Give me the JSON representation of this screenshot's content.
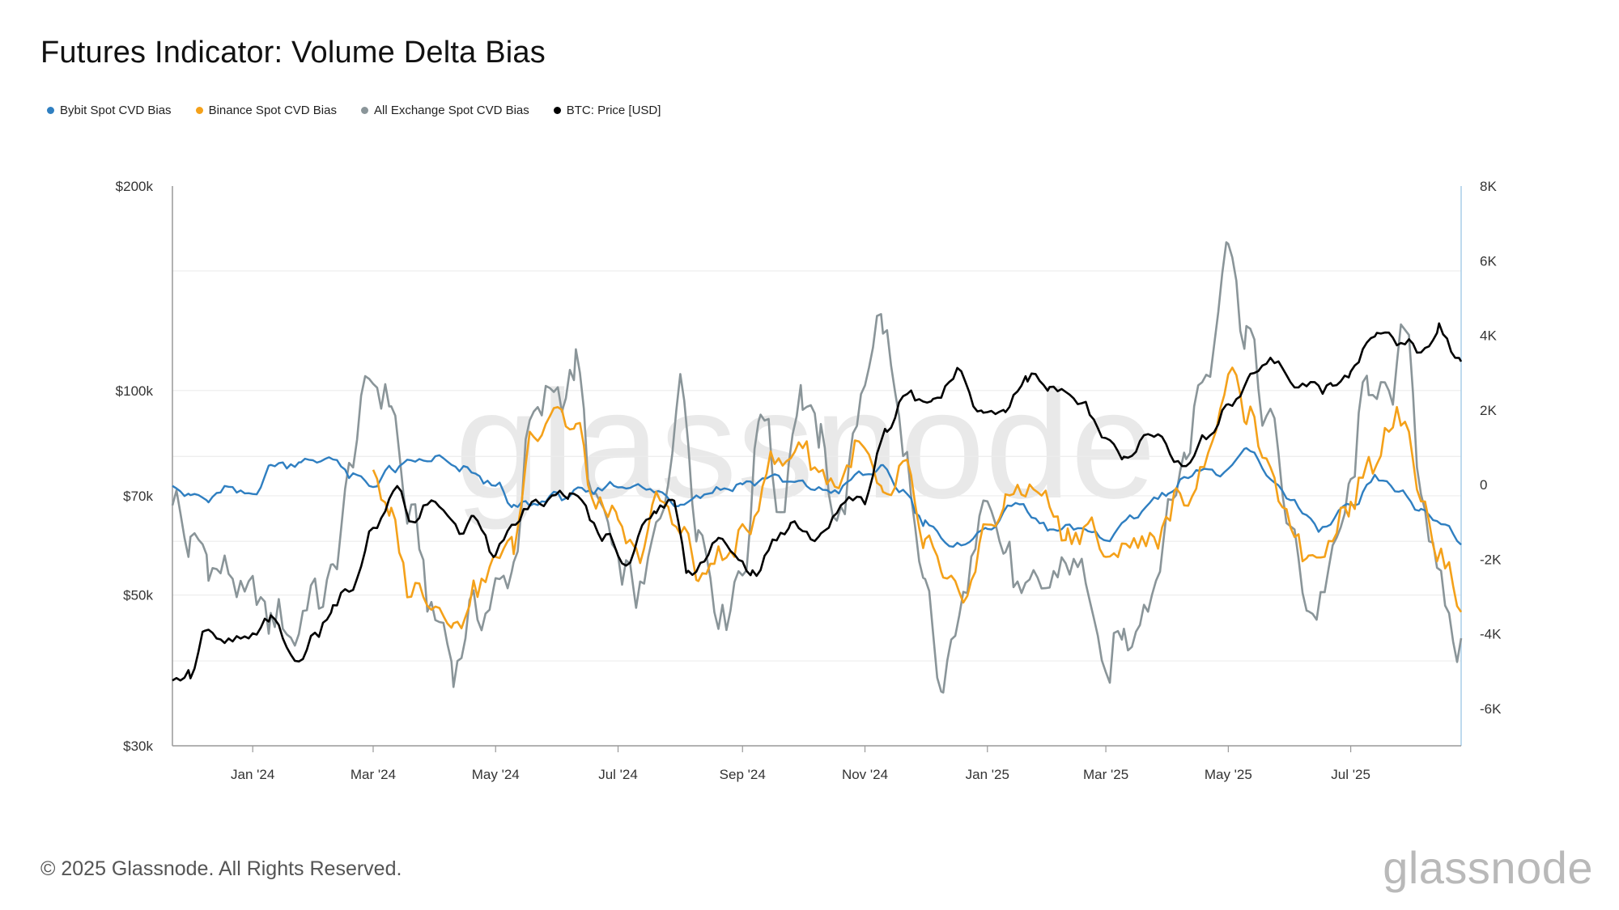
{
  "title": "Futures Indicator: Volume Delta Bias",
  "footer": "© 2025 Glassnode. All Rights Reserved.",
  "brand": "glassnode",
  "watermark": "glassnode",
  "colors": {
    "bybit": "#2f7fc1",
    "binance": "#f4a11a",
    "all_exchange": "#8a9599",
    "btc_price": "#000000",
    "grid": "#ececec",
    "axis": "#999999",
    "right_axis": "#a9cde8"
  },
  "chart_data": {
    "type": "line",
    "title": "Futures Indicator: Volume Delta Bias",
    "x_range": [
      "2023-11-22",
      "2025-08-25"
    ],
    "xtick_labels": [
      {
        "date": "2024-01-01",
        "label": "Jan '24"
      },
      {
        "date": "2024-03-01",
        "label": "Mar '24"
      },
      {
        "date": "2024-05-01",
        "label": "May '24"
      },
      {
        "date": "2024-07-01",
        "label": "Jul '24"
      },
      {
        "date": "2024-09-01",
        "label": "Sep '24"
      },
      {
        "date": "2024-11-01",
        "label": "Nov '24"
      },
      {
        "date": "2025-01-01",
        "label": "Jan '25"
      },
      {
        "date": "2025-03-01",
        "label": "Mar '25"
      },
      {
        "date": "2025-05-01",
        "label": "May '25"
      },
      {
        "date": "2025-07-01",
        "label": "Jul '25"
      }
    ],
    "left_axis": {
      "scale": "log",
      "range": [
        30000,
        200000
      ],
      "ticks": [
        {
          "value": 30000,
          "label": "$30k"
        },
        {
          "value": 50000,
          "label": "$50k"
        },
        {
          "value": 70000,
          "label": "$70k"
        },
        {
          "value": 100000,
          "label": "$100k"
        },
        {
          "value": 200000,
          "label": "$200k"
        }
      ],
      "grid_values": [
        40000,
        60000,
        80000,
        150000
      ]
    },
    "right_axis": {
      "scale": "linear",
      "range": [
        -7000,
        8000
      ],
      "ticks": [
        {
          "value": 8000,
          "label": "8K"
        },
        {
          "value": 6000,
          "label": "6K"
        },
        {
          "value": 4000,
          "label": "4K"
        },
        {
          "value": 2000,
          "label": "2K"
        },
        {
          "value": 0,
          "label": "0"
        },
        {
          "value": -2000,
          "label": "-2K"
        },
        {
          "value": -4000,
          "label": "-4K"
        },
        {
          "value": -6000,
          "label": "-6K"
        }
      ]
    },
    "series": [
      {
        "name": "Bybit Spot CVD Bias",
        "key": "bybit",
        "axis": "right",
        "points": [
          [
            "2023-11-22",
            0
          ],
          [
            "2023-12-01",
            -300
          ],
          [
            "2023-12-10",
            -400
          ],
          [
            "2023-12-20",
            -100
          ],
          [
            "2024-01-01",
            -300
          ],
          [
            "2024-01-10",
            500
          ],
          [
            "2024-01-25",
            600
          ],
          [
            "2024-02-10",
            700
          ],
          [
            "2024-02-20",
            200
          ],
          [
            "2024-03-01",
            0
          ],
          [
            "2024-03-10",
            400
          ],
          [
            "2024-03-20",
            600
          ],
          [
            "2024-04-01",
            700
          ],
          [
            "2024-04-15",
            400
          ],
          [
            "2024-05-01",
            0
          ],
          [
            "2024-05-10",
            -600
          ],
          [
            "2024-05-20",
            -500
          ],
          [
            "2024-06-01",
            -300
          ],
          [
            "2024-06-15",
            -200
          ],
          [
            "2024-07-01",
            0
          ],
          [
            "2024-07-15",
            -100
          ],
          [
            "2024-08-01",
            -500
          ],
          [
            "2024-08-15",
            -200
          ],
          [
            "2024-09-01",
            0
          ],
          [
            "2024-09-15",
            200
          ],
          [
            "2024-10-01",
            0
          ],
          [
            "2024-10-15",
            -200
          ],
          [
            "2024-11-01",
            300
          ],
          [
            "2024-11-10",
            400
          ],
          [
            "2024-11-20",
            -200
          ],
          [
            "2024-12-01",
            -1000
          ],
          [
            "2024-12-15",
            -1700
          ],
          [
            "2025-01-01",
            -1200
          ],
          [
            "2025-01-15",
            -500
          ],
          [
            "2025-02-01",
            -1200
          ],
          [
            "2025-02-20",
            -1200
          ],
          [
            "2025-03-01",
            -1500
          ],
          [
            "2025-03-15",
            -800
          ],
          [
            "2025-04-01",
            -200
          ],
          [
            "2025-04-15",
            400
          ],
          [
            "2025-05-01",
            300
          ],
          [
            "2025-05-10",
            1000
          ],
          [
            "2025-05-20",
            300
          ],
          [
            "2025-06-01",
            -400
          ],
          [
            "2025-06-15",
            -1200
          ],
          [
            "2025-07-01",
            -600
          ],
          [
            "2025-07-15",
            200
          ],
          [
            "2025-07-25",
            -200
          ],
          [
            "2025-08-05",
            -700
          ],
          [
            "2025-08-15",
            -1000
          ],
          [
            "2025-08-25",
            -1500
          ]
        ]
      },
      {
        "name": "Binance Spot CVD Bias",
        "key": "binance",
        "axis": "right",
        "points": [
          [
            "2024-03-01",
            500
          ],
          [
            "2024-03-10",
            -1000
          ],
          [
            "2024-03-20",
            -2800
          ],
          [
            "2024-04-01",
            -3100
          ],
          [
            "2024-04-10",
            -3800
          ],
          [
            "2024-04-20",
            -3000
          ],
          [
            "2024-05-01",
            -2000
          ],
          [
            "2024-05-10",
            -1500
          ],
          [
            "2024-05-20",
            1500
          ],
          [
            "2024-06-01",
            2000
          ],
          [
            "2024-06-10",
            1500
          ],
          [
            "2024-06-20",
            -500
          ],
          [
            "2024-07-01",
            -1000
          ],
          [
            "2024-07-10",
            -2000
          ],
          [
            "2024-07-20",
            -500
          ],
          [
            "2024-08-01",
            -1000
          ],
          [
            "2024-08-10",
            -2500
          ],
          [
            "2024-08-20",
            -2000
          ],
          [
            "2024-09-01",
            -1500
          ],
          [
            "2024-09-15",
            500
          ],
          [
            "2024-10-01",
            1000
          ],
          [
            "2024-10-15",
            0
          ],
          [
            "2024-11-01",
            1000
          ],
          [
            "2024-11-10",
            -500
          ],
          [
            "2024-11-20",
            500
          ],
          [
            "2024-12-01",
            -1500
          ],
          [
            "2024-12-10",
            -2500
          ],
          [
            "2024-12-20",
            -3000
          ],
          [
            "2025-01-01",
            -1200
          ],
          [
            "2025-01-10",
            -500
          ],
          [
            "2025-01-20",
            0
          ],
          [
            "2025-02-01",
            -500
          ],
          [
            "2025-02-10",
            -1500
          ],
          [
            "2025-02-20",
            -1000
          ],
          [
            "2025-03-01",
            -2000
          ],
          [
            "2025-03-15",
            -1500
          ],
          [
            "2025-03-25",
            -1500
          ],
          [
            "2025-04-05",
            -500
          ],
          [
            "2025-04-15",
            0
          ],
          [
            "2025-04-25",
            1500
          ],
          [
            "2025-05-01",
            3000
          ],
          [
            "2025-05-10",
            2000
          ],
          [
            "2025-05-20",
            500
          ],
          [
            "2025-06-01",
            -1000
          ],
          [
            "2025-06-10",
            -2000
          ],
          [
            "2025-06-20",
            -1500
          ],
          [
            "2025-07-01",
            -500
          ],
          [
            "2025-07-10",
            500
          ],
          [
            "2025-07-20",
            1500
          ],
          [
            "2025-07-28",
            2000
          ],
          [
            "2025-08-05",
            -500
          ],
          [
            "2025-08-15",
            -2000
          ],
          [
            "2025-08-25",
            -3100
          ]
        ]
      },
      {
        "name": "All Exchange Spot CVD Bias",
        "key": "all_exchange",
        "axis": "right",
        "points": [
          [
            "2023-11-22",
            -500
          ],
          [
            "2023-12-01",
            -1500
          ],
          [
            "2023-12-10",
            -2000
          ],
          [
            "2023-12-20",
            -2500
          ],
          [
            "2024-01-01",
            -3000
          ],
          [
            "2024-01-10",
            -3500
          ],
          [
            "2024-01-20",
            -4000
          ],
          [
            "2024-02-01",
            -3000
          ],
          [
            "2024-02-10",
            -2500
          ],
          [
            "2024-02-20",
            1000
          ],
          [
            "2024-03-01",
            3000
          ],
          [
            "2024-03-10",
            2000
          ],
          [
            "2024-03-20",
            -1000
          ],
          [
            "2024-04-01",
            -3500
          ],
          [
            "2024-04-10",
            -4800
          ],
          [
            "2024-04-20",
            -3500
          ],
          [
            "2024-05-01",
            -3000
          ],
          [
            "2024-05-10",
            -2000
          ],
          [
            "2024-05-20",
            2000
          ],
          [
            "2024-06-01",
            2500
          ],
          [
            "2024-06-10",
            3000
          ],
          [
            "2024-06-20",
            -500
          ],
          [
            "2024-07-01",
            -2000
          ],
          [
            "2024-07-10",
            -3000
          ],
          [
            "2024-07-20",
            -1500
          ],
          [
            "2024-08-01",
            2500
          ],
          [
            "2024-08-10",
            -1000
          ],
          [
            "2024-08-20",
            -3500
          ],
          [
            "2024-09-01",
            -2500
          ],
          [
            "2024-09-10",
            2000
          ],
          [
            "2024-09-20",
            -500
          ],
          [
            "2024-10-01",
            2500
          ],
          [
            "2024-10-10",
            1000
          ],
          [
            "2024-10-20",
            -1000
          ],
          [
            "2024-11-01",
            3000
          ],
          [
            "2024-11-10",
            4500
          ],
          [
            "2024-11-20",
            1000
          ],
          [
            "2024-12-01",
            -3000
          ],
          [
            "2024-12-10",
            -5500
          ],
          [
            "2024-12-20",
            -3000
          ],
          [
            "2025-01-01",
            0
          ],
          [
            "2025-01-10",
            -2000
          ],
          [
            "2025-01-20",
            -3000
          ],
          [
            "2025-02-01",
            -2500
          ],
          [
            "2025-02-15",
            -2000
          ],
          [
            "2025-03-01",
            -5000
          ],
          [
            "2025-03-10",
            -4000
          ],
          [
            "2025-03-20",
            -3500
          ],
          [
            "2025-04-01",
            -1000
          ],
          [
            "2025-04-10",
            1000
          ],
          [
            "2025-04-20",
            3000
          ],
          [
            "2025-05-01",
            6500
          ],
          [
            "2025-05-10",
            4000
          ],
          [
            "2025-05-20",
            2000
          ],
          [
            "2025-06-01",
            -1000
          ],
          [
            "2025-06-10",
            -3500
          ],
          [
            "2025-06-20",
            -2500
          ],
          [
            "2025-07-01",
            0
          ],
          [
            "2025-07-10",
            3000
          ],
          [
            "2025-07-20",
            2000
          ],
          [
            "2025-07-28",
            4500
          ],
          [
            "2025-08-05",
            0
          ],
          [
            "2025-08-15",
            -3000
          ],
          [
            "2025-08-25",
            -4400
          ]
        ]
      },
      {
        "name": "BTC: Price [USD]",
        "key": "btc_price",
        "axis": "left",
        "points": [
          [
            "2023-11-22",
            37000
          ],
          [
            "2023-12-01",
            38500
          ],
          [
            "2023-12-08",
            44000
          ],
          [
            "2023-12-20",
            42500
          ],
          [
            "2024-01-01",
            43500
          ],
          [
            "2024-01-10",
            46500
          ],
          [
            "2024-01-22",
            40000
          ],
          [
            "2024-02-01",
            43000
          ],
          [
            "2024-02-10",
            48000
          ],
          [
            "2024-02-20",
            51500
          ],
          [
            "2024-03-01",
            62000
          ],
          [
            "2024-03-13",
            72000
          ],
          [
            "2024-03-20",
            64000
          ],
          [
            "2024-04-01",
            69000
          ],
          [
            "2024-04-13",
            62000
          ],
          [
            "2024-04-20",
            65000
          ],
          [
            "2024-05-01",
            58000
          ],
          [
            "2024-05-15",
            66000
          ],
          [
            "2024-05-25",
            69000
          ],
          [
            "2024-06-07",
            70500
          ],
          [
            "2024-06-25",
            61000
          ],
          [
            "2024-07-05",
            56000
          ],
          [
            "2024-07-20",
            67000
          ],
          [
            "2024-07-29",
            68500
          ],
          [
            "2024-08-05",
            53500
          ],
          [
            "2024-08-20",
            60000
          ],
          [
            "2024-09-06",
            54000
          ],
          [
            "2024-09-25",
            63500
          ],
          [
            "2024-10-10",
            60500
          ],
          [
            "2024-10-20",
            68000
          ],
          [
            "2024-11-01",
            69500
          ],
          [
            "2024-11-12",
            88000
          ],
          [
            "2024-11-22",
            98500
          ],
          [
            "2024-12-05",
            97000
          ],
          [
            "2024-12-17",
            106000
          ],
          [
            "2024-12-30",
            92500
          ],
          [
            "2025-01-10",
            94000
          ],
          [
            "2025-01-21",
            105000
          ],
          [
            "2025-02-01",
            101000
          ],
          [
            "2025-02-15",
            97000
          ],
          [
            "2025-03-01",
            85000
          ],
          [
            "2025-03-10",
            79000
          ],
          [
            "2025-03-25",
            87000
          ],
          [
            "2025-04-08",
            77000
          ],
          [
            "2025-04-20",
            85000
          ],
          [
            "2025-05-01",
            95000
          ],
          [
            "2025-05-12",
            104000
          ],
          [
            "2025-05-22",
            111000
          ],
          [
            "2025-06-05",
            102000
          ],
          [
            "2025-06-22",
            101000
          ],
          [
            "2025-07-01",
            107000
          ],
          [
            "2025-07-14",
            121000
          ],
          [
            "2025-07-28",
            118000
          ],
          [
            "2025-08-05",
            114000
          ],
          [
            "2025-08-14",
            123000
          ],
          [
            "2025-08-25",
            111000
          ]
        ]
      }
    ]
  }
}
